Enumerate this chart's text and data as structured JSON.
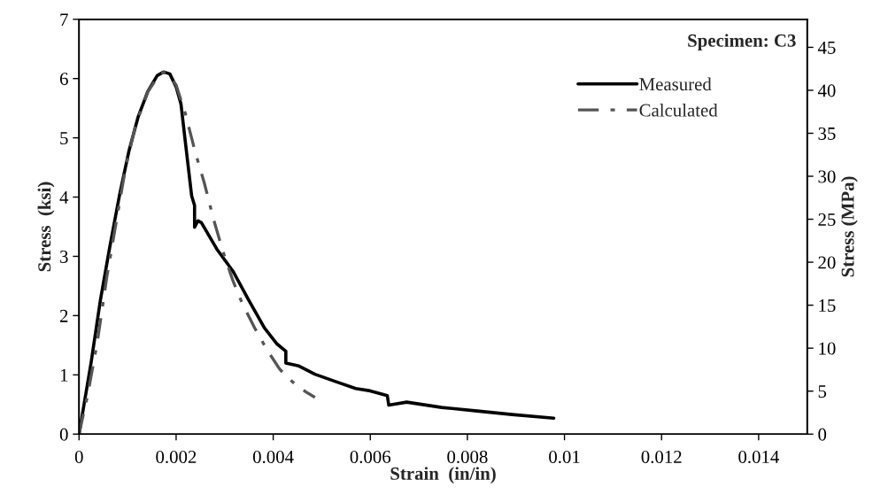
{
  "chart_data": {
    "type": "line",
    "xlabel": "Strain  (in/in)",
    "ylabel": "Stress  (ksi)",
    "y2label": "Stress (MPa)",
    "annotations": [
      "Specimen: C3"
    ],
    "xlim": [
      0,
      0.015
    ],
    "xticks": [
      0,
      0.002,
      0.004,
      0.006,
      0.008,
      {
        "value": 0.01,
        "label": "0.01"
      },
      0.012,
      0.014
    ],
    "ylim": [
      0,
      7
    ],
    "yticks": [
      0,
      1,
      2,
      3,
      4,
      5,
      6,
      7
    ],
    "y2lim": [
      0,
      48.26
    ],
    "y2ticks": [
      0,
      5,
      10,
      15,
      20,
      25,
      30,
      35,
      40,
      45
    ],
    "grid": false,
    "legend": "top right",
    "series": [
      {
        "name": "Measured",
        "color": "#000000",
        "line_style": "solid",
        "x": [
          0,
          0.000247,
          0.000442,
          0.000636,
          0.000831,
          0.001026,
          0.00122,
          0.001416,
          0.00161,
          0.00174,
          0.00187,
          0.002,
          0.0021,
          0.00219,
          0.00232,
          0.00238,
          0.00238,
          0.00245,
          0.00252,
          0.00284,
          0.00317,
          0.00349,
          0.00382,
          0.00408,
          0.00426,
          0.00426,
          0.00453,
          0.00486,
          0.00531,
          0.0057,
          0.006,
          0.00635,
          0.00638,
          0.00675,
          0.00747,
          0.0082,
          0.00892,
          0.00978
        ],
        "values": [
          0,
          1.2,
          2.27,
          3.17,
          4.02,
          4.77,
          5.36,
          5.78,
          6.05,
          6.11,
          6.08,
          5.86,
          5.57,
          4.93,
          4.02,
          3.86,
          3.49,
          3.6,
          3.57,
          3.12,
          2.75,
          2.27,
          1.79,
          1.52,
          1.4,
          1.2,
          1.15,
          1.01,
          0.88,
          0.77,
          0.73,
          0.65,
          0.49,
          0.54,
          0.45,
          0.39,
          0.33,
          0.27
        ]
      },
      {
        "name": "Calculated",
        "color": "#555555",
        "line_style": "dashdot",
        "x": [
          0,
          0.00018,
          0.00038,
          0.00057,
          0.00077,
          0.00096,
          0.00116,
          0.00142,
          0.00168,
          0.00181,
          0.002,
          0.00219,
          0.00239,
          0.00258,
          0.00278,
          0.00297,
          0.00317,
          0.00336,
          0.00362,
          0.00388,
          0.00414,
          0.0044,
          0.00466,
          0.00486
        ],
        "values": [
          0,
          0.67,
          1.57,
          2.64,
          3.6,
          4.5,
          5.2,
          5.78,
          6.1,
          6.1,
          5.89,
          5.41,
          4.77,
          4.24,
          3.6,
          3.07,
          2.59,
          2.21,
          1.79,
          1.41,
          1.09,
          0.88,
          0.72,
          0.62
        ]
      }
    ]
  }
}
